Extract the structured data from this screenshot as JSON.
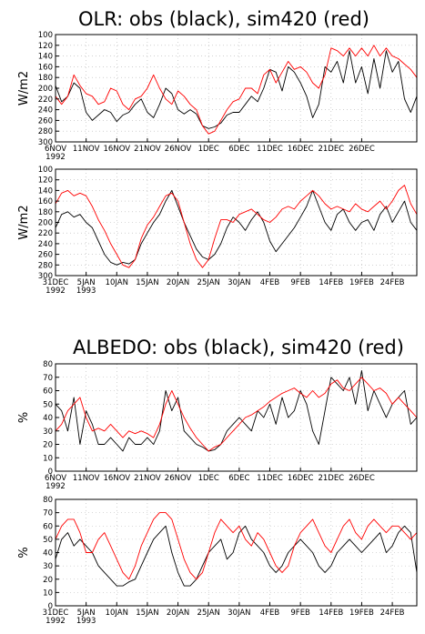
{
  "titles": {
    "olr": "OLR: obs (black), sim420 (red)",
    "albedo": "ALBEDO: obs (black), sim420 (red)"
  },
  "colors": {
    "obs": "#000000",
    "sim": "#ff0000",
    "grid": "#b4b4b4"
  },
  "chart_data": [
    {
      "id": "olr-1",
      "type": "line",
      "title": "OLR: obs (black), sim420 (red)",
      "ylabel": "W/m2",
      "ylim": [
        300,
        100
      ],
      "yticks": [
        100,
        120,
        140,
        160,
        180,
        200,
        220,
        240,
        260,
        280,
        300
      ],
      "xlim": [
        0,
        59
      ],
      "xticks": [
        {
          "x": 0,
          "label": "6NOV",
          "sub": "1992"
        },
        {
          "x": 5,
          "label": "11NOV"
        },
        {
          "x": 10,
          "label": "16NOV"
        },
        {
          "x": 15,
          "label": "21NOV"
        },
        {
          "x": 20,
          "label": "26NOV"
        },
        {
          "x": 25,
          "label": "1DEC"
        },
        {
          "x": 30,
          "label": "6DEC"
        },
        {
          "x": 35,
          "label": "11DEC"
        },
        {
          "x": 40,
          "label": "16DEC"
        },
        {
          "x": 45,
          "label": "21DEC"
        },
        {
          "x": 50,
          "label": "26DEC"
        }
      ],
      "grid": true,
      "x": [
        0,
        1,
        2,
        3,
        4,
        5,
        6,
        7,
        8,
        9,
        10,
        11,
        12,
        13,
        14,
        15,
        16,
        17,
        18,
        19,
        20,
        21,
        22,
        23,
        24,
        25,
        26,
        27,
        28,
        29,
        30,
        31,
        32,
        33,
        34,
        35,
        36,
        37,
        38,
        39,
        40,
        41,
        42,
        43,
        44,
        45,
        46,
        47,
        48,
        49,
        50,
        51,
        52,
        53,
        54,
        55,
        56,
        57,
        58,
        59
      ],
      "series": [
        {
          "key": "obs",
          "values": [
            195,
            225,
            215,
            190,
            200,
            245,
            260,
            250,
            240,
            245,
            262,
            250,
            245,
            230,
            220,
            245,
            255,
            230,
            200,
            210,
            240,
            248,
            240,
            248,
            270,
            275,
            272,
            265,
            250,
            245,
            245,
            230,
            215,
            225,
            200,
            165,
            170,
            205,
            160,
            170,
            190,
            215,
            255,
            230,
            160,
            170,
            150,
            190,
            130,
            190,
            160,
            210,
            145,
            200,
            130,
            170,
            150,
            220,
            245,
            215
          ]
        },
        {
          "key": "sim",
          "values": [
            215,
            230,
            215,
            175,
            195,
            210,
            215,
            230,
            225,
            200,
            205,
            230,
            240,
            220,
            215,
            200,
            175,
            200,
            220,
            230,
            205,
            215,
            230,
            240,
            270,
            285,
            280,
            260,
            240,
            225,
            220,
            200,
            200,
            210,
            175,
            165,
            190,
            170,
            150,
            165,
            160,
            170,
            190,
            200,
            175,
            125,
            130,
            140,
            125,
            140,
            125,
            140,
            120,
            140,
            125,
            140,
            145,
            155,
            165,
            180
          ]
        }
      ]
    },
    {
      "id": "olr-2",
      "type": "line",
      "title": "",
      "ylabel": "W/m2",
      "ylim": [
        300,
        100
      ],
      "yticks": [
        100,
        120,
        140,
        160,
        180,
        200,
        220,
        240,
        260,
        280,
        300
      ],
      "xlim": [
        0,
        59
      ],
      "xticks": [
        {
          "x": 0,
          "label": "31DEC",
          "sub": "1992"
        },
        {
          "x": 5,
          "label": "5JAN",
          "sub": "1993"
        },
        {
          "x": 10,
          "label": "10JAN"
        },
        {
          "x": 15,
          "label": "15JAN"
        },
        {
          "x": 20,
          "label": "20JAN"
        },
        {
          "x": 25,
          "label": "25JAN"
        },
        {
          "x": 30,
          "label": "30JAN"
        },
        {
          "x": 35,
          "label": "4FEB"
        },
        {
          "x": 40,
          "label": "9FEB"
        },
        {
          "x": 45,
          "label": "14FEB"
        },
        {
          "x": 50,
          "label": "19FEB"
        },
        {
          "x": 55,
          "label": "24FEB"
        }
      ],
      "grid": true,
      "x": [
        0,
        1,
        2,
        3,
        4,
        5,
        6,
        7,
        8,
        9,
        10,
        11,
        12,
        13,
        14,
        15,
        16,
        17,
        18,
        19,
        20,
        21,
        22,
        23,
        24,
        25,
        26,
        27,
        28,
        29,
        30,
        31,
        32,
        33,
        34,
        35,
        36,
        37,
        38,
        39,
        40,
        41,
        42,
        43,
        44,
        45,
        46,
        47,
        48,
        49,
        50,
        51,
        52,
        53,
        54,
        55,
        56,
        57,
        58,
        59
      ],
      "series": [
        {
          "key": "obs",
          "values": [
            210,
            185,
            180,
            190,
            185,
            200,
            210,
            235,
            260,
            275,
            280,
            275,
            278,
            270,
            240,
            220,
            200,
            185,
            160,
            140,
            170,
            200,
            225,
            250,
            265,
            270,
            260,
            240,
            210,
            190,
            200,
            215,
            195,
            180,
            200,
            235,
            255,
            240,
            225,
            210,
            190,
            170,
            140,
            170,
            200,
            215,
            185,
            175,
            200,
            215,
            200,
            195,
            215,
            185,
            170,
            200,
            180,
            160,
            200,
            215
          ]
        },
        {
          "key": "sim",
          "values": [
            165,
            145,
            140,
            150,
            145,
            150,
            170,
            195,
            215,
            240,
            260,
            280,
            285,
            270,
            230,
            205,
            190,
            170,
            150,
            145,
            160,
            200,
            240,
            270,
            285,
            270,
            230,
            195,
            195,
            200,
            185,
            180,
            175,
            185,
            195,
            200,
            190,
            175,
            170,
            175,
            160,
            150,
            140,
            150,
            165,
            175,
            170,
            175,
            180,
            165,
            175,
            180,
            170,
            160,
            175,
            160,
            140,
            130,
            165,
            185
          ]
        }
      ]
    },
    {
      "id": "albedo-1",
      "type": "line",
      "title": "ALBEDO: obs (black), sim420 (red)",
      "ylabel": "%",
      "ylim": [
        0,
        80
      ],
      "yticks": [
        0,
        10,
        20,
        30,
        40,
        50,
        60,
        70,
        80
      ],
      "xlim": [
        0,
        59
      ],
      "xticks": [
        {
          "x": 0,
          "label": "6NOV",
          "sub": "1992"
        },
        {
          "x": 5,
          "label": "11NOV"
        },
        {
          "x": 10,
          "label": "16NOV"
        },
        {
          "x": 15,
          "label": "21NOV"
        },
        {
          "x": 20,
          "label": "26NOV"
        },
        {
          "x": 25,
          "label": "1DEC"
        },
        {
          "x": 30,
          "label": "6DEC"
        },
        {
          "x": 35,
          "label": "11DEC"
        },
        {
          "x": 40,
          "label": "16DEC"
        },
        {
          "x": 45,
          "label": "21DEC"
        },
        {
          "x": 50,
          "label": "26DEC"
        }
      ],
      "grid": true,
      "x": [
        0,
        1,
        2,
        3,
        4,
        5,
        6,
        7,
        8,
        9,
        10,
        11,
        12,
        13,
        14,
        15,
        16,
        17,
        18,
        19,
        20,
        21,
        22,
        23,
        24,
        25,
        26,
        27,
        28,
        29,
        30,
        31,
        32,
        33,
        34,
        35,
        36,
        37,
        38,
        39,
        40,
        41,
        42,
        43,
        44,
        45,
        46,
        47,
        48,
        49,
        50,
        51,
        52,
        53,
        54,
        55,
        56,
        57,
        58,
        59
      ],
      "series": [
        {
          "key": "obs",
          "values": [
            50,
            45,
            30,
            55,
            20,
            45,
            35,
            20,
            20,
            25,
            20,
            15,
            25,
            20,
            20,
            25,
            20,
            30,
            60,
            45,
            55,
            30,
            25,
            20,
            18,
            15,
            16,
            20,
            30,
            35,
            40,
            35,
            30,
            45,
            40,
            50,
            35,
            55,
            40,
            45,
            60,
            50,
            30,
            20,
            45,
            70,
            65,
            60,
            70,
            50,
            75,
            45,
            60,
            50,
            40,
            50,
            55,
            60,
            35,
            40
          ]
        },
        {
          "key": "sim",
          "values": [
            30,
            35,
            45,
            50,
            55,
            40,
            30,
            32,
            30,
            35,
            30,
            25,
            30,
            28,
            30,
            28,
            25,
            35,
            50,
            60,
            50,
            40,
            32,
            25,
            20,
            15,
            18,
            20,
            25,
            30,
            35,
            40,
            42,
            45,
            48,
            52,
            55,
            58,
            60,
            62,
            58,
            55,
            60,
            55,
            58,
            65,
            68,
            62,
            60,
            65,
            70,
            65,
            60,
            62,
            58,
            50,
            55,
            50,
            45,
            40
          ]
        }
      ]
    },
    {
      "id": "albedo-2",
      "type": "line",
      "title": "",
      "ylabel": "%",
      "ylim": [
        0,
        80
      ],
      "yticks": [
        0,
        10,
        20,
        30,
        40,
        50,
        60,
        70,
        80
      ],
      "xlim": [
        0,
        59
      ],
      "xticks": [
        {
          "x": 0,
          "label": "31DEC",
          "sub": "1992"
        },
        {
          "x": 5,
          "label": "5JAN",
          "sub": "1993"
        },
        {
          "x": 10,
          "label": "10JAN"
        },
        {
          "x": 15,
          "label": "15JAN"
        },
        {
          "x": 20,
          "label": "20JAN"
        },
        {
          "x": 25,
          "label": "25JAN"
        },
        {
          "x": 30,
          "label": "30JAN"
        },
        {
          "x": 35,
          "label": "4FEB"
        },
        {
          "x": 40,
          "label": "9FEB"
        },
        {
          "x": 45,
          "label": "14FEB"
        },
        {
          "x": 50,
          "label": "19FEB"
        },
        {
          "x": 55,
          "label": "24FEB"
        }
      ],
      "grid": true,
      "x": [
        0,
        1,
        2,
        3,
        4,
        5,
        6,
        7,
        8,
        9,
        10,
        11,
        12,
        13,
        14,
        15,
        16,
        17,
        18,
        19,
        20,
        21,
        22,
        23,
        24,
        25,
        26,
        27,
        28,
        29,
        30,
        31,
        32,
        33,
        34,
        35,
        36,
        37,
        38,
        39,
        40,
        41,
        42,
        43,
        44,
        45,
        46,
        47,
        48,
        49,
        50,
        51,
        52,
        53,
        54,
        55,
        56,
        57,
        58,
        59
      ],
      "series": [
        {
          "key": "obs",
          "values": [
            35,
            50,
            55,
            45,
            50,
            45,
            40,
            30,
            25,
            20,
            15,
            15,
            18,
            20,
            30,
            40,
            50,
            55,
            60,
            40,
            25,
            15,
            15,
            20,
            30,
            40,
            45,
            50,
            35,
            40,
            55,
            60,
            50,
            45,
            40,
            30,
            25,
            30,
            40,
            45,
            50,
            45,
            40,
            30,
            25,
            30,
            40,
            45,
            50,
            45,
            40,
            45,
            50,
            55,
            40,
            45,
            55,
            60,
            55,
            25
          ]
        },
        {
          "key": "sim",
          "values": [
            50,
            60,
            65,
            65,
            55,
            40,
            40,
            50,
            55,
            45,
            35,
            25,
            20,
            30,
            45,
            55,
            65,
            70,
            70,
            65,
            50,
            35,
            25,
            20,
            25,
            40,
            55,
            65,
            60,
            55,
            60,
            50,
            45,
            55,
            50,
            40,
            30,
            25,
            30,
            45,
            55,
            60,
            65,
            55,
            45,
            40,
            50,
            60,
            65,
            55,
            50,
            60,
            65,
            60,
            55,
            60,
            60,
            55,
            50,
            55
          ]
        }
      ]
    }
  ]
}
